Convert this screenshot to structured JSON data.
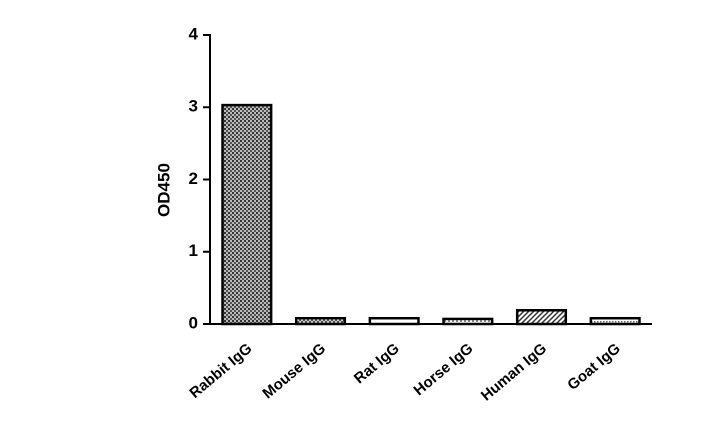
{
  "chart_data": {
    "type": "bar",
    "y_label": "OD450",
    "categories": [
      "Rabbit IgG",
      "Mouse IgG",
      "Rat IgG",
      "Horse IgG",
      "Human IgG",
      "Goat IgG"
    ],
    "values": [
      3.03,
      0.08,
      0.08,
      0.07,
      0.19,
      0.08
    ],
    "color": "#000000",
    "ylim": [
      0,
      4
    ],
    "yticks": [
      0,
      1,
      2,
      3,
      4
    ],
    "grid": false
  }
}
